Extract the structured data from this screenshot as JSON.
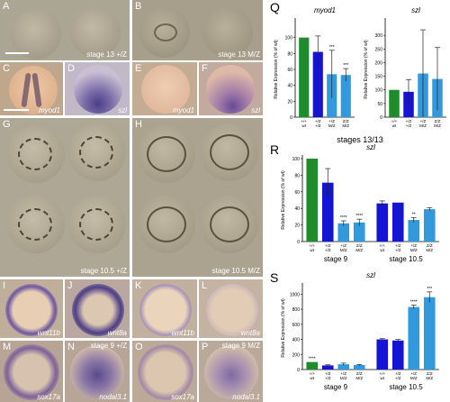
{
  "panels": {
    "A": {
      "label": "A",
      "caption": "stage 13 +/Z"
    },
    "B": {
      "label": "B",
      "caption": "stage 13 M/Z"
    },
    "C": {
      "label": "C",
      "caption": "myod1"
    },
    "D": {
      "label": "D",
      "caption": "szl"
    },
    "E": {
      "label": "E",
      "caption": "myod1"
    },
    "F": {
      "label": "F",
      "caption": "szl"
    },
    "G": {
      "label": "G",
      "caption": "stage 10.5 +/Z"
    },
    "H": {
      "label": "H",
      "caption": "stage 10.5 M/Z"
    },
    "I": {
      "label": "I",
      "caption": "wnt11b"
    },
    "J": {
      "label": "J",
      "caption": "wnt8a"
    },
    "K": {
      "label": "K",
      "caption": "wnt11b"
    },
    "L": {
      "label": "L",
      "caption": "wnt8a"
    },
    "M": {
      "label": "M",
      "caption": "sox17a"
    },
    "N": {
      "label": "N",
      "caption": "nodal3.1",
      "stage": "stage 9 +/Z"
    },
    "O": {
      "label": "O",
      "caption": "sox17a"
    },
    "P": {
      "label": "P",
      "caption": "nodal3.1",
      "stage": "stage 9 M/Z"
    },
    "Q": {
      "label": "Q"
    },
    "R": {
      "label": "R"
    },
    "S": {
      "label": "S"
    }
  },
  "colors": {
    "green": "#1e8c2a",
    "blue": "#1414d2",
    "light_blue": "#3399dd"
  },
  "chart_data": [
    {
      "id": "Q-myod1",
      "type": "bar",
      "title": "myod1",
      "ylabel": "Relative Expression (% of wt)",
      "xlabel": "stages 13/13",
      "ylim": [
        0,
        120
      ],
      "yticks": [
        "0",
        "20",
        "40",
        "60",
        "80",
        "100"
      ],
      "categories": [
        "+/+ wt",
        "+/Z +/Z",
        "+/Z M/Z",
        "Z/Z M/Z"
      ],
      "values": [
        100,
        82,
        54,
        53
      ],
      "errors": [
        0,
        20,
        30,
        8
      ],
      "colors": [
        "green",
        "blue",
        "light_blue",
        "light_blue"
      ],
      "annotations": [
        "",
        "",
        "***",
        "***"
      ]
    },
    {
      "id": "Q-szl",
      "type": "bar",
      "title": "szl",
      "ylabel": "Relative Expression (% of wt)",
      "ylim": [
        0,
        350
      ],
      "yticks": [
        "0",
        "50",
        "100",
        "150",
        "200",
        "250",
        "300"
      ],
      "categories": [
        "+/+ wt",
        "+/Z +/Z",
        "+/Z M/Z",
        "Z/Z M/Z"
      ],
      "values": [
        100,
        93,
        160,
        140
      ],
      "errors": [
        0,
        45,
        160,
        115
      ],
      "colors": [
        "green",
        "blue",
        "light_blue",
        "light_blue"
      ],
      "annotations": [
        "",
        "",
        "",
        ""
      ]
    },
    {
      "id": "R-szl",
      "type": "bar",
      "title": "szl",
      "ylabel": "Relative Expression (% of wt)",
      "ylim": [
        0,
        100
      ],
      "yticks": [
        "0",
        "20",
        "40",
        "60",
        "80",
        "100"
      ],
      "categories": [
        "+/+ wt",
        "+/Z +/Z",
        "+/Z M/Z",
        "Z/Z M/Z",
        "+/+ wt",
        "+/Z +/Z",
        "+/Z M/Z",
        "Z/Z M/Z"
      ],
      "group_labels": [
        "stage 9",
        "stage 10.5"
      ],
      "values": [
        100,
        71,
        22,
        23,
        46,
        47,
        26,
        39
      ],
      "errors": [
        0,
        17,
        3,
        4,
        3,
        0,
        3,
        2
      ],
      "colors": [
        "green",
        "blue",
        "light_blue",
        "light_blue",
        "blue",
        "blue",
        "light_blue",
        "light_blue"
      ],
      "annotations": [
        "",
        "",
        "****",
        "****",
        "",
        "",
        "**",
        ""
      ]
    },
    {
      "id": "S-szl",
      "type": "bar",
      "title": "szl",
      "ylabel": "Relative Expression (% of wt)",
      "ylim": [
        0,
        1100
      ],
      "yticks": [
        "0",
        "200",
        "400",
        "600",
        "800",
        "1000"
      ],
      "categories": [
        "+/+ wt",
        "+/Z +/Z",
        "+/Z M/Z",
        "Z/Z M/Z",
        "+/+ wt",
        "+/Z +/Z",
        "+/Z M/Z",
        "Z/Z M/Z"
      ],
      "group_labels": [
        "stage 9",
        "stage 10.5"
      ],
      "values": [
        100,
        55,
        70,
        60,
        400,
        385,
        830,
        960
      ],
      "errors": [
        0,
        8,
        15,
        8,
        10,
        15,
        25,
        70
      ],
      "colors": [
        "green",
        "blue",
        "light_blue",
        "light_blue",
        "blue",
        "blue",
        "light_blue",
        "light_blue"
      ],
      "annotations": [
        "****",
        "",
        "",
        "",
        "",
        "",
        "****",
        "***"
      ]
    }
  ]
}
